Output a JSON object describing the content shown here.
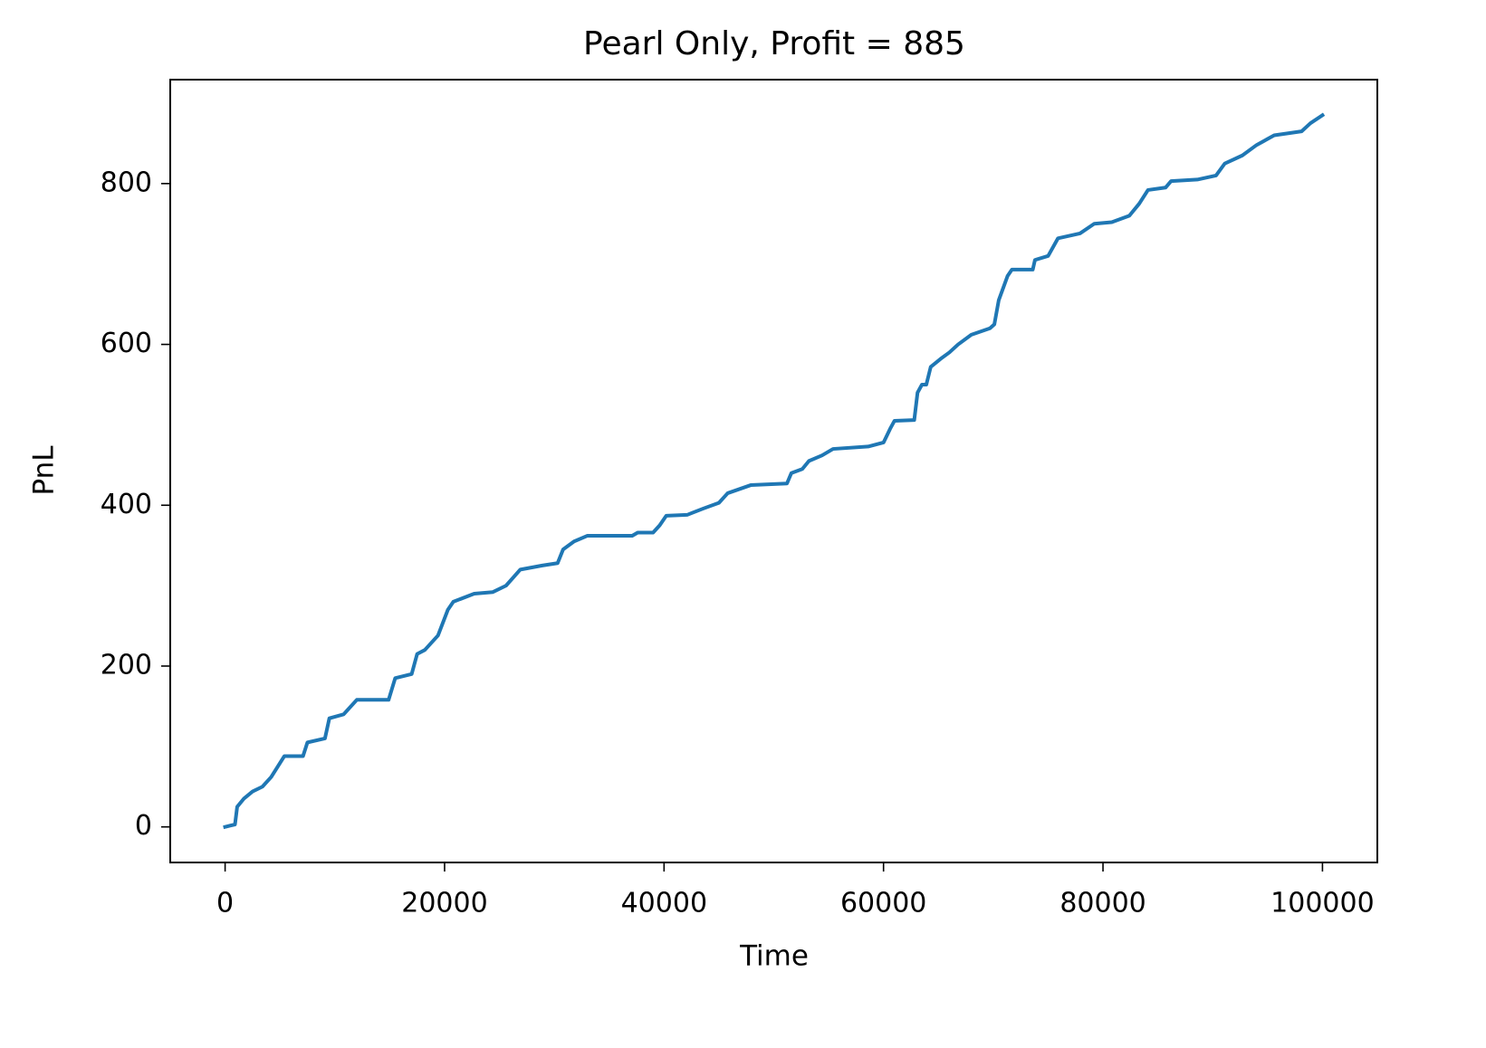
{
  "chart_data": {
    "type": "line",
    "title": "Pearl Only, Profit = 885",
    "x_label": "Time",
    "y_label": "PnL",
    "x": [
      0,
      900,
      1100,
      1700,
      2500,
      3400,
      4200,
      5400,
      7100,
      7500,
      9100,
      9500,
      10800,
      12000,
      14900,
      15500,
      17000,
      17500,
      18200,
      19400,
      20300,
      20800,
      22700,
      24400,
      25600,
      26900,
      28900,
      30300,
      30800,
      31800,
      33000,
      37100,
      37600,
      39000,
      39600,
      40200,
      42100,
      43600,
      45000,
      45800,
      47900,
      51200,
      51600,
      52600,
      53200,
      54400,
      55400,
      58600,
      60000,
      60600,
      61000,
      62800,
      63100,
      63500,
      63900,
      64300,
      65200,
      66000,
      66800,
      68000,
      69700,
      70100,
      70500,
      71300,
      71700,
      73600,
      73800,
      75000,
      75900,
      77900,
      79200,
      80800,
      82400,
      83300,
      84100,
      85700,
      86200,
      88600,
      90300,
      91100,
      92700,
      94000,
      95600,
      98100,
      98900,
      100000
    ],
    "values": [
      0,
      3,
      25,
      35,
      44,
      50,
      62,
      88,
      88,
      105,
      110,
      135,
      140,
      158,
      158,
      185,
      190,
      215,
      220,
      238,
      270,
      280,
      290,
      292,
      300,
      320,
      325,
      328,
      345,
      355,
      362,
      362,
      366,
      366,
      375,
      387,
      388,
      396,
      403,
      415,
      425,
      427,
      440,
      445,
      455,
      462,
      470,
      473,
      478,
      495,
      505,
      506,
      540,
      550,
      550,
      572,
      582,
      590,
      600,
      612,
      620,
      625,
      655,
      685,
      693,
      693,
      705,
      710,
      732,
      738,
      750,
      752,
      760,
      775,
      792,
      795,
      803,
      805,
      810,
      825,
      835,
      848,
      860,
      865,
      875,
      885
    ],
    "color": "#1f77b4",
    "xlim": [
      -5000,
      105000
    ],
    "ylim": [
      -44.25,
      929.25
    ],
    "xticks": [
      0,
      20000,
      40000,
      60000,
      80000,
      100000
    ],
    "yticks": [
      0,
      200,
      400,
      600,
      800
    ]
  }
}
